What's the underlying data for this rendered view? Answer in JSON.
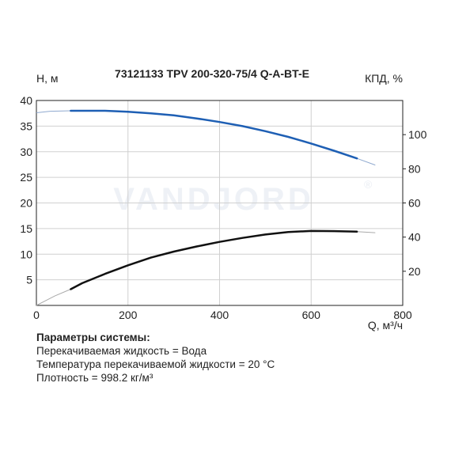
{
  "chart_data": {
    "type": "line",
    "title": "73121133 TPV 200-320-75/4 Q-A-BT-E",
    "xlabel": "Q, м³/ч",
    "ylabel_left": "H, м",
    "ylabel_right": "КПД, %",
    "watermark": "VANDJORD",
    "watermark_mark": "®",
    "xlim": [
      0,
      800
    ],
    "ylim_left": [
      0,
      40
    ],
    "ylim_right": [
      0,
      120
    ],
    "x_ticks": [
      "0",
      "200",
      "400",
      "600",
      "800"
    ],
    "y_left_ticks": [
      "5",
      "10",
      "15",
      "20",
      "25",
      "30",
      "35",
      "40"
    ],
    "y_right_ticks": [
      "20",
      "40",
      "60",
      "80",
      "100"
    ],
    "grid": true,
    "series": [
      {
        "id": "head",
        "axis": "left",
        "color": "#1e5fb4",
        "ext_color": "#8fa9cf",
        "ext_before": [
          [
            0,
            37.6
          ],
          [
            30,
            37.9
          ],
          [
            75,
            38.0
          ]
        ],
        "x": [
          75,
          100,
          150,
          200,
          250,
          300,
          350,
          400,
          450,
          500,
          550,
          600,
          650,
          700
        ],
        "y": [
          38.0,
          38.0,
          38.0,
          37.8,
          37.5,
          37.1,
          36.5,
          35.8,
          35.0,
          34.0,
          32.9,
          31.6,
          30.2,
          28.7
        ],
        "ext_after": [
          [
            700,
            28.7
          ],
          [
            740,
            27.4
          ]
        ]
      },
      {
        "id": "efficiency",
        "axis": "right",
        "color": "#111111",
        "ext_color": "#aaaaaa",
        "ext_before": [
          [
            0,
            0
          ],
          [
            40,
            5.5
          ],
          [
            75,
            9.5
          ]
        ],
        "x": [
          75,
          100,
          150,
          200,
          250,
          300,
          350,
          400,
          450,
          500,
          550,
          600,
          650,
          700
        ],
        "y": [
          9.5,
          13.0,
          18.5,
          23.5,
          28.0,
          31.5,
          34.5,
          37.2,
          39.5,
          41.5,
          43.0,
          43.6,
          43.5,
          43.2
        ],
        "ext_after": [
          [
            700,
            43.2
          ],
          [
            740,
            42.6
          ]
        ]
      }
    ]
  },
  "parameters": {
    "title": "Параметры системы:",
    "lines": [
      "Перекачиваемая жидкость = Вода",
      "Температура перекачиваемой жидкости = 20 °C",
      "Плотность = 998.2 кг/м³"
    ]
  }
}
